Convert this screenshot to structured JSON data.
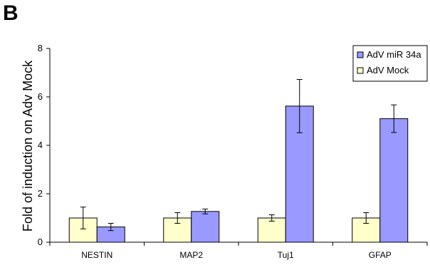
{
  "panel_label": "B",
  "chart_data": {
    "type": "bar",
    "categories": [
      "NESTIN",
      "MAP2",
      "Tuj1",
      "GFAP"
    ],
    "series": [
      {
        "name": "AdV Mock",
        "values": [
          1.0,
          1.0,
          1.0,
          1.0
        ],
        "errors": [
          0.45,
          0.22,
          0.13,
          0.22
        ],
        "color": "#ffffcc"
      },
      {
        "name": "AdV miR 34a",
        "values": [
          0.63,
          1.27,
          5.62,
          5.1
        ],
        "errors": [
          0.15,
          0.1,
          1.1,
          0.57
        ],
        "color": "#9999ff"
      }
    ],
    "ylabel": "Fold of induction on Adv Mock",
    "ylim": [
      0,
      8
    ],
    "yticks": [
      "0",
      "2",
      "4",
      "6",
      "8"
    ],
    "legend_order": [
      "AdV miR 34a",
      "AdV Mock"
    ],
    "legend_position": "top-right",
    "grid": false
  }
}
